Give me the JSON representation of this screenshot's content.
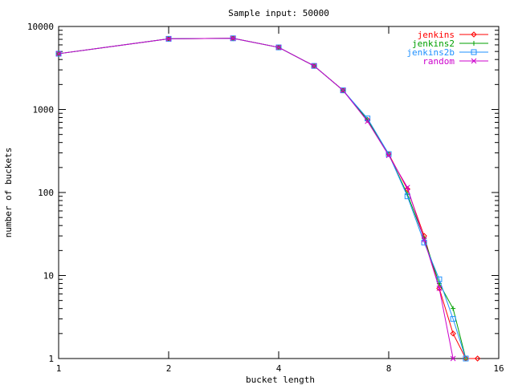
{
  "chart_data": {
    "type": "line",
    "title": "Sample input: 50000",
    "xlabel": "bucket length",
    "ylabel": "number of buckets",
    "x_scale": "log2",
    "y_scale": "log10",
    "xlim": [
      1,
      16
    ],
    "ylim": [
      1,
      10000
    ],
    "x_ticks": [
      1,
      2,
      4,
      8,
      16
    ],
    "x_tick_labels": [
      "1",
      "2",
      "4",
      "8",
      "16"
    ],
    "y_ticks": [
      1,
      10,
      100,
      1000,
      10000
    ],
    "y_tick_labels": [
      "1",
      "10",
      "100",
      "1000",
      "10000"
    ],
    "grid": false,
    "legend_position": "top-right",
    "series": [
      {
        "name": "jenkins",
        "color": "#ff0000",
        "marker": "diamond",
        "points": [
          [
            1,
            4700
          ],
          [
            2,
            7100
          ],
          [
            3,
            7200
          ],
          [
            4,
            5600
          ],
          [
            5,
            3350
          ],
          [
            6,
            1700
          ],
          [
            7,
            750
          ],
          [
            8,
            290
          ],
          [
            9,
            110
          ],
          [
            10,
            30
          ],
          [
            11,
            7
          ],
          [
            12,
            2
          ],
          [
            13,
            1
          ],
          [
            14,
            1
          ]
        ]
      },
      {
        "name": "jenkins2",
        "color": "#00a000",
        "marker": "plus",
        "points": [
          [
            1,
            4700
          ],
          [
            2,
            7100
          ],
          [
            3,
            7200
          ],
          [
            4,
            5600
          ],
          [
            5,
            3350
          ],
          [
            6,
            1700
          ],
          [
            7,
            750
          ],
          [
            8,
            290
          ],
          [
            9,
            95
          ],
          [
            10,
            28
          ],
          [
            11,
            8
          ],
          [
            12,
            4
          ],
          [
            13,
            1
          ]
        ]
      },
      {
        "name": "jenkins2b",
        "color": "#1e90ff",
        "marker": "square",
        "points": [
          [
            1,
            4700
          ],
          [
            2,
            7100
          ],
          [
            3,
            7200
          ],
          [
            4,
            5600
          ],
          [
            5,
            3350
          ],
          [
            6,
            1700
          ],
          [
            7,
            780
          ],
          [
            8,
            290
          ],
          [
            9,
            90
          ],
          [
            10,
            25
          ],
          [
            11,
            9
          ],
          [
            12,
            3
          ],
          [
            13,
            1
          ]
        ]
      },
      {
        "name": "random",
        "color": "#cc00cc",
        "marker": "cross",
        "points": [
          [
            1,
            4700
          ],
          [
            2,
            7100
          ],
          [
            3,
            7200
          ],
          [
            4,
            5600
          ],
          [
            5,
            3350
          ],
          [
            6,
            1700
          ],
          [
            7,
            720
          ],
          [
            8,
            280
          ],
          [
            9,
            115
          ],
          [
            10,
            27
          ],
          [
            11,
            7
          ],
          [
            12,
            1
          ]
        ]
      }
    ]
  }
}
